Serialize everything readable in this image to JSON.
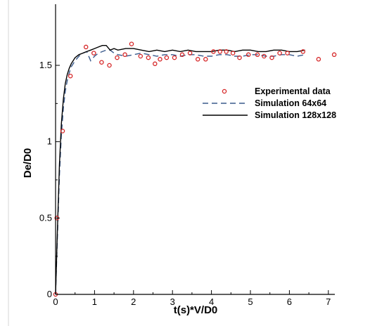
{
  "chart_data": {
    "type": "line",
    "xlabel": "t(s)*V/D0",
    "ylabel": "De/D0",
    "xlim": [
      0,
      7.2
    ],
    "ylim": [
      0,
      1.75
    ],
    "x_ticks": [
      "0",
      "1",
      "2",
      "3",
      "4",
      "5",
      "6",
      "7"
    ],
    "y_ticks": [
      "0",
      "0.5",
      "1",
      "1.5"
    ],
    "legend_position": "right",
    "grid": false,
    "series": [
      {
        "name": "Experimental data",
        "kind": "scatter",
        "marker": "open-circle",
        "color": "#d62728",
        "x": [
          0.0,
          0.03,
          0.18,
          0.38,
          0.78,
          0.98,
          1.18,
          1.38,
          1.58,
          1.78,
          1.95,
          2.18,
          2.38,
          2.55,
          2.68,
          2.85,
          3.05,
          3.25,
          3.45,
          3.65,
          3.85,
          4.05,
          4.22,
          4.38,
          4.55,
          4.72,
          4.95,
          5.18,
          5.35,
          5.55,
          5.75,
          5.95,
          6.35,
          6.75,
          7.15
        ],
        "y": [
          0.0,
          0.5,
          1.07,
          1.43,
          1.62,
          1.58,
          1.52,
          1.5,
          1.55,
          1.57,
          1.64,
          1.56,
          1.55,
          1.51,
          1.54,
          1.55,
          1.55,
          1.57,
          1.58,
          1.54,
          1.54,
          1.59,
          1.59,
          1.59,
          1.58,
          1.55,
          1.57,
          1.57,
          1.56,
          1.55,
          1.58,
          1.58,
          1.59,
          1.54,
          1.57
        ]
      },
      {
        "name": "Simulation 64x64",
        "kind": "line",
        "style": "dashed",
        "color": "#3a5a8c",
        "x": [
          0.0,
          0.05,
          0.1,
          0.15,
          0.2,
          0.25,
          0.3,
          0.35,
          0.4,
          0.5,
          0.6,
          0.7,
          0.8,
          0.9,
          1.0,
          1.1,
          1.2,
          1.3,
          1.4,
          1.5,
          1.6,
          1.8,
          2.0,
          2.2,
          2.4,
          2.6,
          2.8,
          3.0,
          3.2,
          3.4,
          3.6,
          3.8,
          4.0,
          4.2,
          4.4,
          4.6,
          4.8,
          5.0,
          5.2,
          5.4,
          5.6,
          5.8,
          6.0,
          6.2,
          6.4
        ],
        "y": [
          0.0,
          0.4,
          0.78,
          1.05,
          1.22,
          1.33,
          1.4,
          1.45,
          1.49,
          1.53,
          1.56,
          1.58,
          1.59,
          1.53,
          1.56,
          1.58,
          1.59,
          1.6,
          1.6,
          1.58,
          1.57,
          1.56,
          1.57,
          1.58,
          1.57,
          1.56,
          1.57,
          1.57,
          1.56,
          1.57,
          1.57,
          1.56,
          1.56,
          1.57,
          1.57,
          1.56,
          1.56,
          1.57,
          1.57,
          1.56,
          1.56,
          1.57,
          1.57,
          1.56,
          1.57
        ]
      },
      {
        "name": "Simulation 128x128",
        "kind": "line",
        "style": "solid",
        "color": "#000000",
        "x": [
          0.0,
          0.05,
          0.1,
          0.15,
          0.2,
          0.25,
          0.3,
          0.35,
          0.4,
          0.5,
          0.6,
          0.7,
          0.8,
          0.9,
          1.0,
          1.1,
          1.2,
          1.3,
          1.4,
          1.5,
          1.6,
          1.8,
          2.0,
          2.2,
          2.4,
          2.6,
          2.8,
          3.0,
          3.2,
          3.4,
          3.6,
          3.8,
          4.0,
          4.2,
          4.4,
          4.6,
          4.8,
          5.0,
          5.2,
          5.4,
          5.6,
          5.8,
          6.0,
          6.2,
          6.4
        ],
        "y": [
          0.0,
          0.45,
          0.85,
          1.12,
          1.28,
          1.38,
          1.44,
          1.48,
          1.51,
          1.55,
          1.57,
          1.58,
          1.59,
          1.6,
          1.61,
          1.62,
          1.63,
          1.63,
          1.6,
          1.61,
          1.6,
          1.61,
          1.61,
          1.6,
          1.59,
          1.6,
          1.59,
          1.6,
          1.59,
          1.6,
          1.59,
          1.59,
          1.59,
          1.6,
          1.6,
          1.59,
          1.6,
          1.6,
          1.59,
          1.59,
          1.6,
          1.6,
          1.59,
          1.59,
          1.6
        ]
      }
    ]
  }
}
